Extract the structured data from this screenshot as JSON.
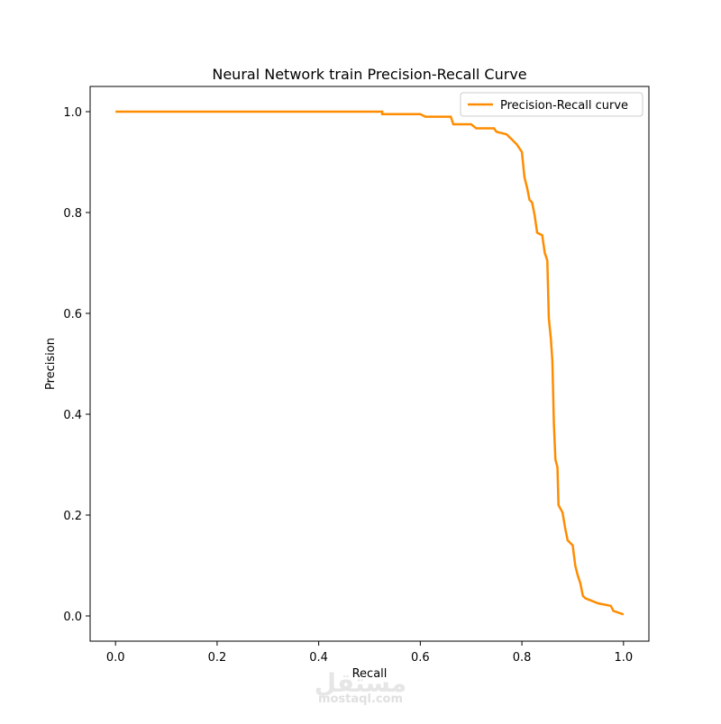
{
  "chart_data": {
    "type": "line",
    "title": "Neural Network train Precision-Recall Curve",
    "xlabel": "Recall",
    "ylabel": "Precision",
    "xlim": [
      -0.05,
      1.05
    ],
    "ylim": [
      -0.05,
      1.05
    ],
    "xticks": [
      {
        "value": 0,
        "label": "0.0"
      },
      0.2,
      0.4,
      0.6,
      0.8,
      {
        "value": 1,
        "label": "1.0"
      }
    ],
    "yticks": [
      {
        "value": 0,
        "label": "0.0"
      },
      0.2,
      0.4,
      0.6,
      0.8,
      {
        "value": 1,
        "label": "1.0"
      }
    ],
    "legend": "upper right",
    "series": [
      {
        "name": "Precision-Recall curve",
        "color": "#ff8c00",
        "x": [
          0,
          0.525,
          0.525,
          0.6,
          0.61,
          0.66,
          0.665,
          0.7,
          0.71,
          0.745,
          0.75,
          0.77,
          0.78,
          0.79,
          0.8,
          0.805,
          0.81,
          0.815,
          0.82,
          0.825,
          0.83,
          0.84,
          0.845,
          0.85,
          0.853,
          0.857,
          0.86,
          0.863,
          0.866,
          0.87,
          0.872,
          0.88,
          0.885,
          0.89,
          0.9,
          0.905,
          0.91,
          0.915,
          0.92,
          0.925,
          0.95,
          0.975,
          0.98,
          1.0
        ],
        "values": [
          1.0,
          1.0,
          0.995,
          0.995,
          0.99,
          0.99,
          0.975,
          0.975,
          0.967,
          0.967,
          0.96,
          0.955,
          0.945,
          0.935,
          0.92,
          0.87,
          0.85,
          0.825,
          0.82,
          0.795,
          0.76,
          0.755,
          0.72,
          0.705,
          0.59,
          0.55,
          0.505,
          0.38,
          0.31,
          0.295,
          0.22,
          0.205,
          0.175,
          0.15,
          0.14,
          0.1,
          0.08,
          0.065,
          0.04,
          0.035,
          0.025,
          0.02,
          0.01,
          0.003
        ]
      }
    ],
    "watermark": [
      "مستقل",
      "mostaql.com"
    ]
  }
}
